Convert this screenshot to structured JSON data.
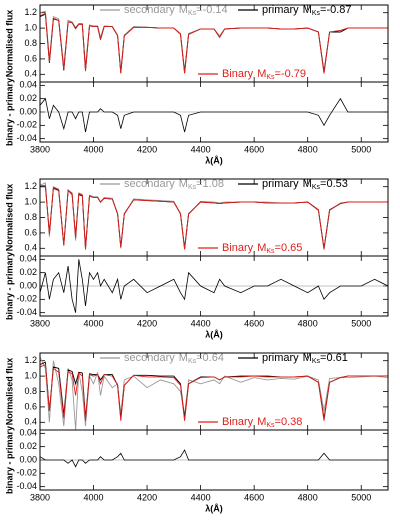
{
  "magnitude_symbol": "M",
  "magnitude_subscript": "Ks",
  "equals": "=",
  "chart_data": [
    {
      "type": "line",
      "x": [
        3800,
        3820,
        3835,
        3850,
        3870,
        3889,
        3905,
        3920,
        3933,
        3945,
        3958,
        3970,
        3985,
        4000,
        4015,
        4026,
        4040,
        4070,
        4090,
        4102,
        4115,
        4150,
        4200,
        4250,
        4300,
        4325,
        4340,
        4355,
        4400,
        4450,
        4471,
        4490,
        4550,
        4600,
        4650,
        4700,
        4750,
        4800,
        4840,
        4861,
        4882,
        4922,
        4950,
        5000,
        5050,
        5100
      ],
      "xlim": [
        3800,
        5100
      ],
      "xticks": [
        3800,
        4000,
        4200,
        4400,
        4600,
        4800,
        5000
      ],
      "xlabel": "λ(Å)",
      "ylabel": "Normalised flux",
      "ylim": [
        0.3,
        1.3
      ],
      "yticks": [
        0.4,
        0.6,
        0.8,
        {
          "value": 1,
          "label": "1.0"
        },
        1.2
      ],
      "series": [
        {
          "name": "secondary",
          "magnitude": -0.14,
          "color": "#999999",
          "values": [
            1.2,
            1.22,
            0.6,
            1.15,
            1.12,
            0.5,
            1.1,
            1.08,
            1.0,
            1.06,
            1.06,
            0.5,
            1.04,
            1.03,
            1.03,
            0.88,
            1.03,
            1.02,
            0.91,
            0.45,
            0.91,
            1.02,
            1.01,
            1.0,
            1.0,
            0.93,
            0.45,
            0.93,
            0.99,
            0.99,
            0.9,
            0.99,
            1.0,
            1.0,
            1.0,
            0.99,
            0.99,
            1.0,
            0.95,
            0.45,
            0.95,
            0.97,
            1.0,
            1.0,
            1.0,
            1.0
          ]
        },
        {
          "name": "primary",
          "magnitude": -0.87,
          "color": "#000000",
          "values": [
            1.15,
            1.18,
            0.55,
            1.12,
            1.1,
            0.45,
            1.08,
            1.07,
            1.0,
            1.05,
            1.05,
            0.45,
            1.03,
            1.02,
            1.02,
            0.85,
            1.02,
            1.02,
            0.9,
            0.42,
            0.9,
            1.01,
            1.01,
            1.0,
            1.0,
            0.92,
            0.42,
            0.92,
            0.99,
            0.99,
            0.88,
            0.99,
            1.0,
            1.0,
            1.0,
            0.99,
            0.99,
            1.0,
            0.95,
            0.42,
            0.95,
            0.95,
            1.0,
            1.0,
            1.0,
            1.0
          ]
        },
        {
          "name": "Binary",
          "magnitude": -0.79,
          "color": "#e0201b",
          "values": [
            1.16,
            1.19,
            0.56,
            1.13,
            1.1,
            0.46,
            1.08,
            1.07,
            0.99,
            1.05,
            1.05,
            0.44,
            1.03,
            1.02,
            1.02,
            0.86,
            1.02,
            1.02,
            0.9,
            0.41,
            0.9,
            1.01,
            1.01,
            1.0,
            1.0,
            0.92,
            0.41,
            0.92,
            0.99,
            0.99,
            0.88,
            0.99,
            1.0,
            1.0,
            1.0,
            0.99,
            0.99,
            1.0,
            0.95,
            0.41,
            0.95,
            0.97,
            1.0,
            1.0,
            1.0,
            1.0
          ]
        }
      ],
      "residual": {
        "ylabel": "binary - primary",
        "ylim": [
          -0.045,
          0.045
        ],
        "yticks": [
          -0.04,
          -0.02,
          {
            "value": 0,
            "label": "0.00"
          },
          0.02,
          0.04
        ],
        "reference": 0,
        "color": "#000000",
        "values": [
          0.01,
          0.02,
          -0.01,
          0.01,
          0,
          -0.025,
          0,
          0,
          -0.01,
          0,
          0,
          -0.03,
          0,
          0,
          0,
          0.005,
          0,
          0,
          -0.005,
          -0.025,
          -0.005,
          0,
          0,
          0,
          0,
          -0.005,
          -0.03,
          -0.005,
          0,
          0,
          0,
          0,
          0,
          0,
          0,
          0,
          0,
          0,
          -0.005,
          -0.02,
          -0.005,
          0.02,
          0,
          0,
          0,
          0
        ]
      }
    },
    {
      "type": "line",
      "x": [
        3800,
        3820,
        3835,
        3850,
        3870,
        3889,
        3905,
        3920,
        3933,
        3945,
        3958,
        3970,
        3985,
        4000,
        4015,
        4026,
        4040,
        4070,
        4090,
        4102,
        4115,
        4150,
        4200,
        4250,
        4300,
        4325,
        4340,
        4355,
        4400,
        4450,
        4471,
        4490,
        4550,
        4600,
        4650,
        4700,
        4750,
        4800,
        4840,
        4861,
        4882,
        4922,
        4950,
        5000,
        5050,
        5100
      ],
      "xlim": [
        3800,
        5100
      ],
      "xticks": [
        3800,
        4000,
        4200,
        4400,
        4600,
        4800,
        5000
      ],
      "xlabel": "λ(Å)",
      "ylabel": "Normalised flux",
      "ylim": [
        0.3,
        1.3
      ],
      "yticks": [
        0.4,
        0.6,
        0.8,
        {
          "value": 1,
          "label": "1.0"
        },
        1.2
      ],
      "series": [
        {
          "name": "secondary",
          "magnitude": 1.08,
          "color": "#999999",
          "values": [
            1.22,
            1.25,
            0.55,
            1.2,
            1.17,
            0.43,
            1.16,
            1.12,
            0.5,
            1.12,
            1.1,
            0.38,
            1.09,
            1.07,
            1.07,
            1.0,
            1.06,
            1.05,
            0.84,
            0.4,
            0.84,
            1.04,
            1.03,
            1.02,
            1.01,
            0.84,
            0.38,
            0.84,
            1.01,
            1.0,
            0.99,
            1.0,
            1.0,
            1.0,
            1.0,
            0.99,
            0.99,
            1.0,
            0.89,
            0.38,
            0.89,
            0.99,
            1.0,
            1.0,
            1.0,
            1.0
          ]
        },
        {
          "name": "primary",
          "magnitude": 0.53,
          "color": "#000000",
          "values": [
            1.2,
            1.2,
            0.6,
            1.18,
            1.15,
            0.45,
            1.15,
            1.1,
            0.55,
            1.1,
            1.08,
            0.4,
            1.08,
            1.06,
            1.06,
            1.0,
            1.05,
            1.04,
            0.85,
            0.42,
            0.85,
            1.03,
            1.02,
            1.01,
            1.0,
            0.85,
            0.4,
            0.85,
            1.0,
            0.99,
            0.98,
            0.99,
            1.0,
            1.0,
            0.99,
            0.99,
            0.99,
            1.0,
            0.9,
            0.4,
            0.9,
            0.98,
            1.0,
            1.0,
            1.0,
            1.0
          ]
        },
        {
          "name": "Binary",
          "magnitude": 0.65,
          "color": "#e0201b",
          "values": [
            1.21,
            1.22,
            0.58,
            1.19,
            1.16,
            0.44,
            1.15,
            1.11,
            0.53,
            1.11,
            1.09,
            0.39,
            1.08,
            1.06,
            1.06,
            1.0,
            1.05,
            1.04,
            0.85,
            0.41,
            0.85,
            1.03,
            1.02,
            1.01,
            1.0,
            0.85,
            0.39,
            0.85,
            1.0,
            0.99,
            0.98,
            0.99,
            1.0,
            1.0,
            0.99,
            0.99,
            0.99,
            1.0,
            0.9,
            0.39,
            0.9,
            0.98,
            1.0,
            1.0,
            1.0,
            1.0
          ]
        }
      ],
      "residual": {
        "ylabel": "binary - primary",
        "ylim": [
          -0.045,
          0.045
        ],
        "yticks": [
          -0.04,
          -0.02,
          {
            "value": 0,
            "label": "0.00"
          },
          0.02,
          0.04
        ],
        "reference": 0,
        "color": "#000000",
        "values": [
          -0.01,
          0.02,
          -0.02,
          0.01,
          0.02,
          -0.01,
          0.03,
          -0.02,
          -0.04,
          0.04,
          0.01,
          -0.03,
          0.02,
          0.01,
          0.02,
          0,
          0.01,
          -0.01,
          0.01,
          -0.02,
          0,
          0.01,
          -0.01,
          0,
          0.01,
          -0.01,
          -0.02,
          0.02,
          0,
          -0.01,
          0.01,
          0,
          -0.01,
          0,
          0,
          0.01,
          0,
          -0.01,
          0,
          -0.02,
          -0.01,
          0,
          0,
          0,
          0.01,
          0
        ]
      }
    },
    {
      "type": "line",
      "x": [
        3800,
        3820,
        3835,
        3850,
        3870,
        3889,
        3905,
        3920,
        3933,
        3945,
        3958,
        3970,
        3985,
        4000,
        4015,
        4026,
        4040,
        4070,
        4090,
        4102,
        4115,
        4150,
        4200,
        4250,
        4300,
        4325,
        4340,
        4355,
        4400,
        4450,
        4471,
        4490,
        4550,
        4600,
        4650,
        4700,
        4750,
        4800,
        4840,
        4861,
        4882,
        4922,
        4950,
        5000,
        5050,
        5100
      ],
      "xlim": [
        3800,
        5100
      ],
      "xticks": [
        3800,
        4000,
        4200,
        4400,
        4600,
        4800,
        5000
      ],
      "xlabel": "λ(Å)",
      "ylabel": "Normalised flux",
      "ylim": [
        0.3,
        1.3
      ],
      "yticks": [
        0.4,
        0.6,
        0.8,
        {
          "value": 1,
          "label": "1.0"
        },
        1.2
      ],
      "series": [
        {
          "name": "secondary",
          "magnitude": 0.64,
          "color": "#999999",
          "values": [
            1.25,
            1.1,
            0.4,
            1.2,
            0.9,
            0.35,
            1.1,
            0.95,
            0.3,
            1.05,
            0.8,
            0.35,
            1.0,
            0.9,
            1.05,
            0.75,
            1.0,
            0.85,
            0.9,
            0.5,
            0.95,
            1.0,
            0.85,
            0.95,
            0.9,
            0.8,
            0.5,
            0.95,
            0.9,
            0.95,
            0.9,
            1.0,
            0.92,
            0.98,
            0.95,
            0.97,
            0.96,
            1.0,
            0.95,
            0.55,
            0.97,
            0.98,
            0.98,
            0.99,
            1.0,
            0.98
          ]
        },
        {
          "name": "primary",
          "magnitude": 0.61,
          "color": "#000000",
          "values": [
            1.15,
            1.18,
            0.55,
            1.12,
            1.1,
            0.5,
            1.08,
            1.06,
            0.9,
            1.05,
            1.04,
            0.45,
            1.03,
            1.02,
            1.02,
            0.95,
            1.02,
            1.02,
            0.88,
            0.45,
            0.88,
            1.01,
            1.01,
            1.0,
            1.0,
            0.9,
            0.45,
            0.9,
            0.99,
            0.99,
            0.95,
            0.99,
            1.0,
            1.0,
            1.0,
            0.99,
            0.99,
            1.0,
            0.92,
            0.45,
            0.92,
            0.98,
            1.0,
            1.0,
            1.0,
            1.0
          ]
        },
        {
          "name": "Binary",
          "magnitude": 0.38,
          "color": "#e0201b",
          "values": [
            1.12,
            1.15,
            0.55,
            1.1,
            1.05,
            0.45,
            1.06,
            1.03,
            0.75,
            1.04,
            1.0,
            0.42,
            1.02,
            1.0,
            1.02,
            0.9,
            1.02,
            1.0,
            0.88,
            0.42,
            0.88,
            1.01,
            0.99,
            0.99,
            0.98,
            0.88,
            0.42,
            0.9,
            0.98,
            0.99,
            0.95,
            0.99,
            0.99,
            1.0,
            0.99,
            0.99,
            0.99,
            1.0,
            0.92,
            0.42,
            0.92,
            0.98,
            1.0,
            1.0,
            1.0,
            1.0
          ]
        }
      ],
      "residual": {
        "ylabel": "binary - primary",
        "ylim": [
          -0.045,
          0.045
        ],
        "yticks": [
          -0.04,
          -0.02,
          {
            "value": 0,
            "label": "0.00"
          },
          0.02,
          0.04
        ],
        "reference": 0,
        "color": "#000000",
        "values": [
          0.005,
          0,
          0,
          0,
          0,
          0,
          -0.005,
          0,
          -0.01,
          0,
          0,
          -0.005,
          0,
          0,
          0,
          0.005,
          0,
          0,
          0.005,
          0.01,
          0,
          0,
          0,
          0,
          0,
          0.005,
          0.015,
          0,
          0,
          0,
          0,
          0,
          0,
          0,
          0,
          0,
          0,
          0,
          0,
          0.01,
          0,
          0,
          0,
          0,
          0,
          0
        ]
      }
    }
  ]
}
